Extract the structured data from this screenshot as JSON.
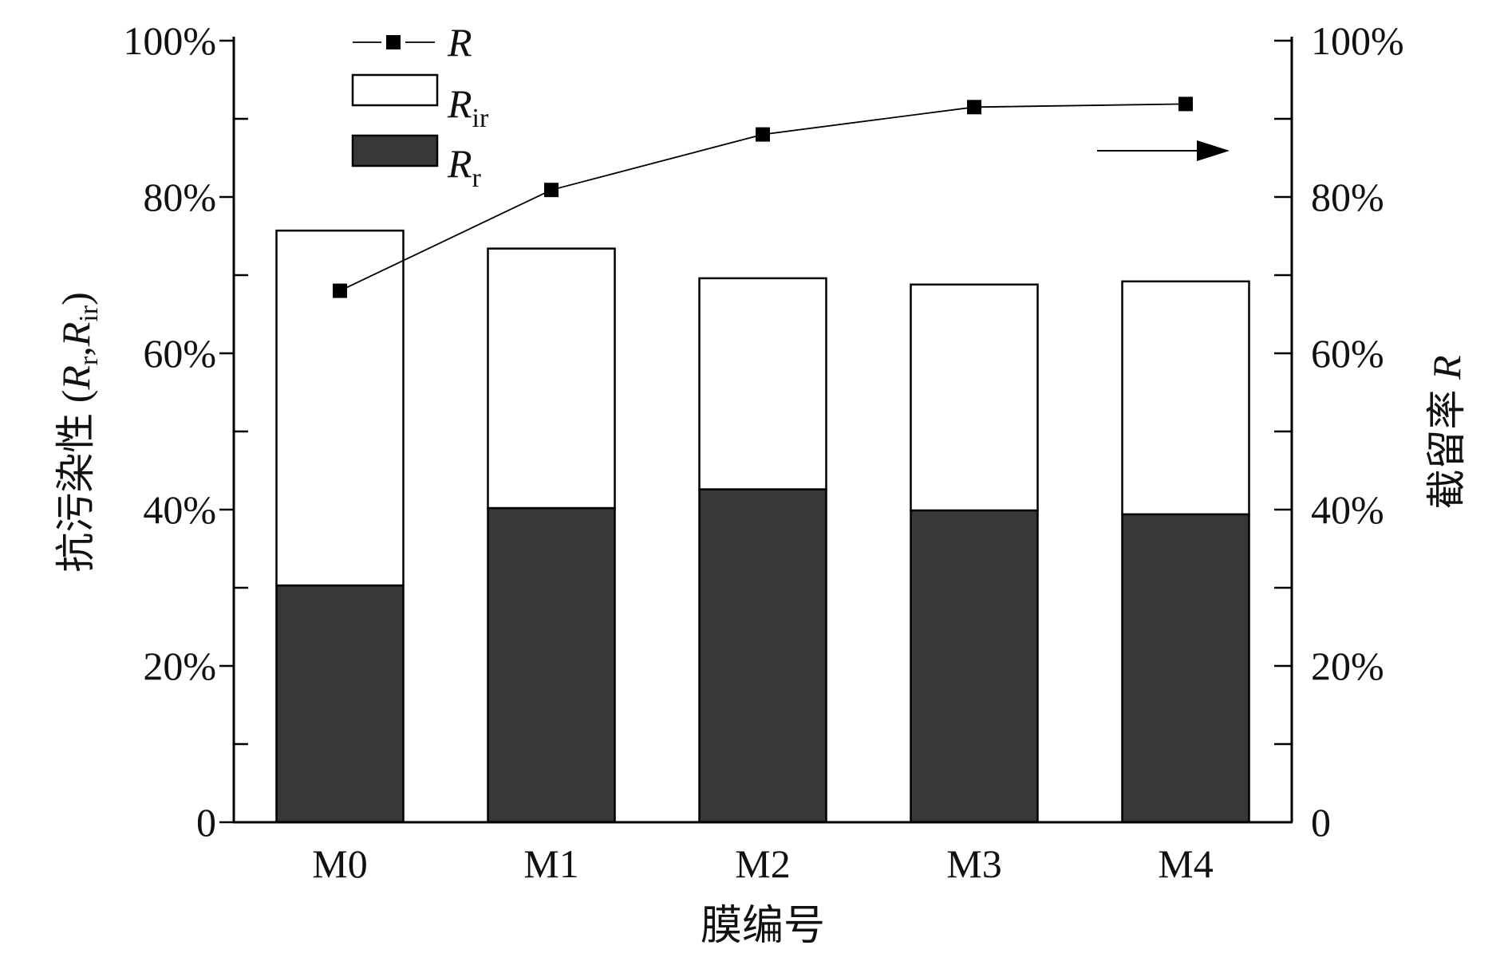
{
  "chart_data": {
    "type": "bar",
    "stacked": true,
    "categories": [
      "M0",
      "M1",
      "M2",
      "M3",
      "M4"
    ],
    "xlabel": "膜编号",
    "ylabel_left": {
      "prefix": "抗污染性 (",
      "r1": "R",
      "s1": "r",
      "sep": ",",
      "r2": "R",
      "s2": "ir",
      "suffix": ")"
    },
    "ylabel_right": {
      "text": "截留率 ",
      "sym": "R"
    },
    "ylim": [
      0,
      100
    ],
    "yticks_left": [
      "0",
      "20%",
      "40%",
      "60%",
      "80%",
      "100%"
    ],
    "yticks_right": [
      "0",
      "20%",
      "40%",
      "60%",
      "80%",
      "100%"
    ],
    "series": [
      {
        "name": "R_r",
        "label": "R",
        "sub": "r",
        "axis": "left",
        "kind": "bar",
        "color": "#383838",
        "values": [
          30.3,
          40.2,
          42.6,
          39.9,
          39.4
        ]
      },
      {
        "name": "R_ir",
        "label": "R",
        "sub": "ir",
        "axis": "left",
        "kind": "bar",
        "color": "#ffffff",
        "values": [
          45.4,
          33.2,
          27.0,
          28.9,
          29.8
        ]
      },
      {
        "name": "R",
        "label": "R",
        "sub": "",
        "axis": "right",
        "kind": "line",
        "marker": "square",
        "color": "#000000",
        "values": [
          68.0,
          80.9,
          88.0,
          91.5,
          91.9
        ]
      }
    ],
    "annotation": "arrow pointing right (R uses right axis)",
    "legend_position": "top-left",
    "grid": false
  }
}
